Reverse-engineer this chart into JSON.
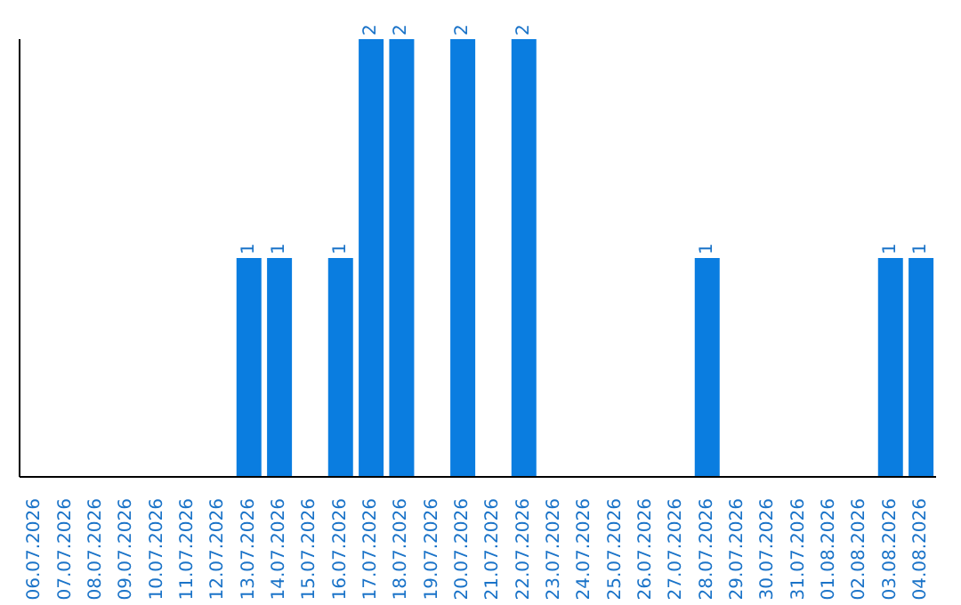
{
  "chart_data": {
    "type": "bar",
    "categories": [
      "06.07.2026",
      "07.07.2026",
      "08.07.2026",
      "09.07.2026",
      "10.07.2026",
      "11.07.2026",
      "12.07.2026",
      "13.07.2026",
      "14.07.2026",
      "15.07.2026",
      "16.07.2026",
      "17.07.2026",
      "18.07.2026",
      "19.07.2026",
      "20.07.2026",
      "21.07.2026",
      "22.07.2026",
      "23.07.2026",
      "24.07.2026",
      "25.07.2026",
      "26.07.2026",
      "27.07.2026",
      "28.07.2026",
      "29.07.2026",
      "30.07.2026",
      "31.07.2026",
      "01.08.2026",
      "02.08.2026",
      "03.08.2026",
      "04.08.2026"
    ],
    "values": [
      0,
      0,
      0,
      0,
      0,
      0,
      0,
      1,
      1,
      0,
      1,
      2,
      2,
      0,
      2,
      0,
      2,
      0,
      0,
      0,
      0,
      0,
      1,
      0,
      0,
      0,
      0,
      0,
      1,
      1
    ],
    "value_labels": [
      null,
      null,
      null,
      null,
      null,
      null,
      null,
      "1",
      "1",
      null,
      "1",
      "2",
      "2",
      null,
      "2",
      null,
      "2",
      null,
      null,
      null,
      null,
      null,
      "1",
      null,
      null,
      null,
      null,
      null,
      "1",
      "1"
    ],
    "color": "#0a7de0",
    "grid": false,
    "legend": false
  }
}
